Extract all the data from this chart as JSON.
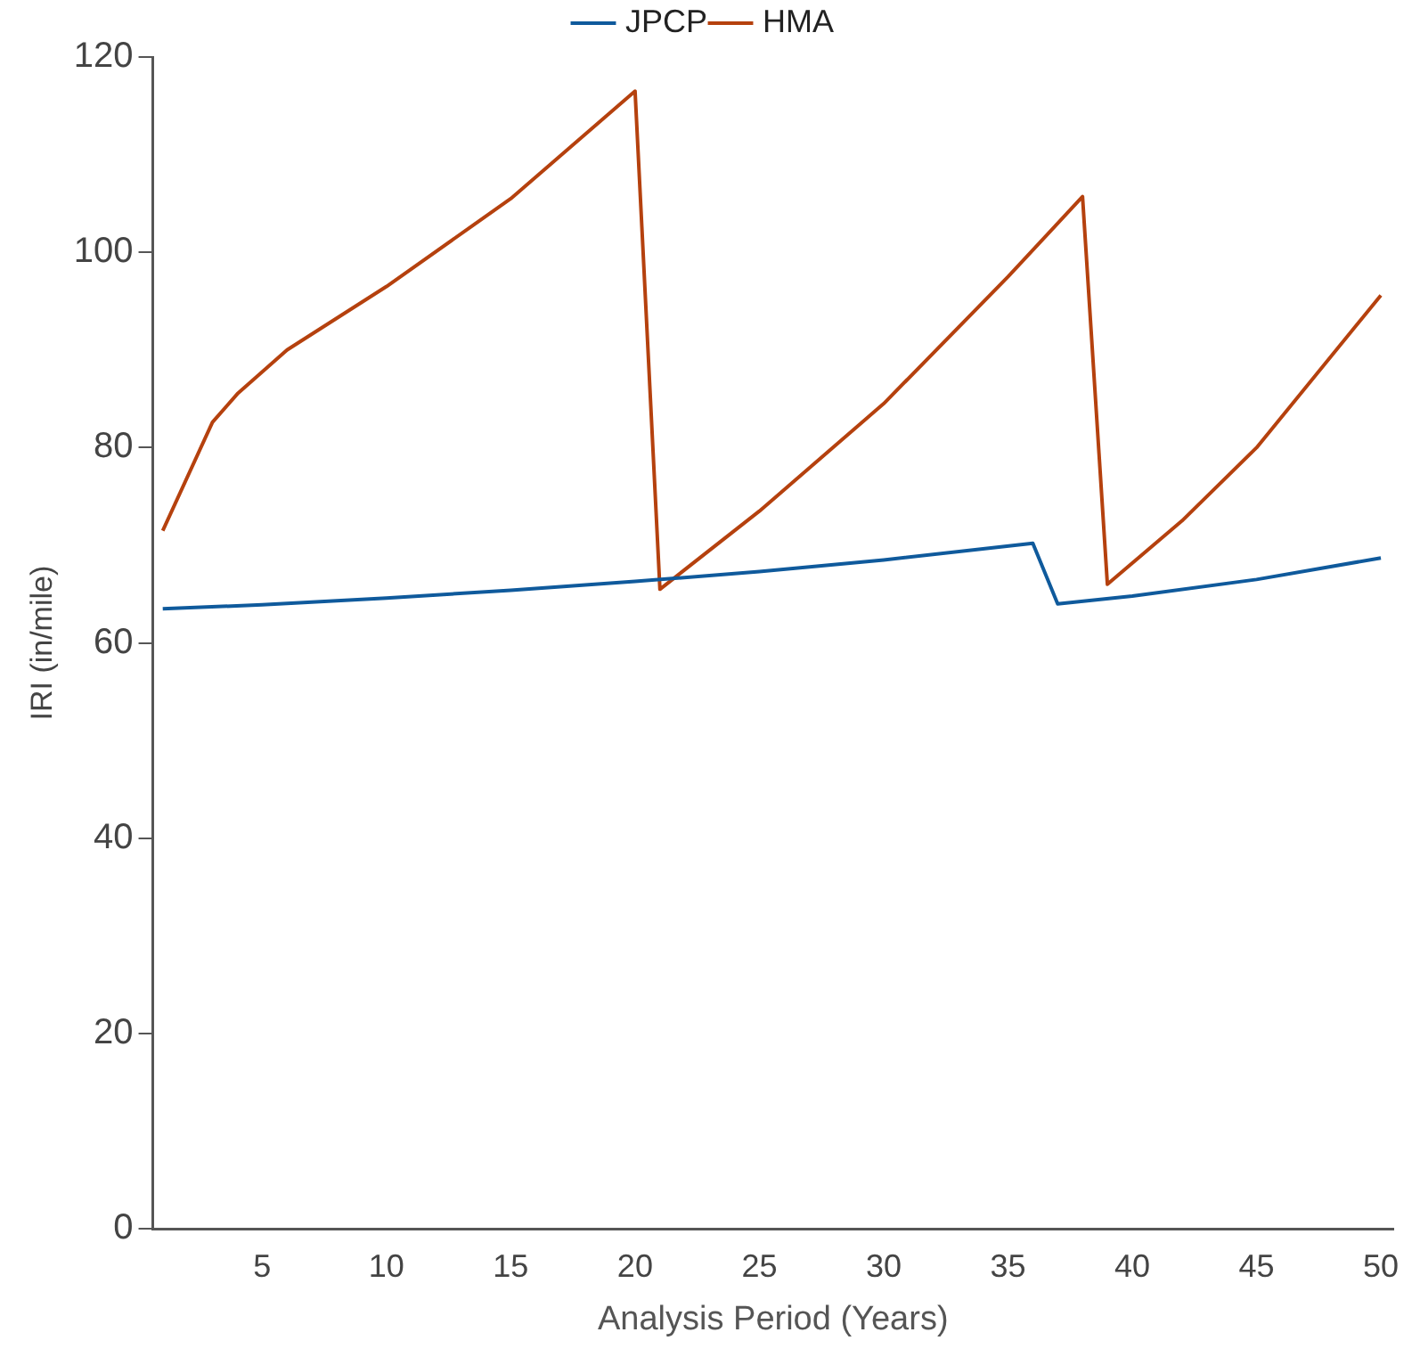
{
  "chart_data": {
    "type": "line",
    "xlabel": "Analysis Period (Years)",
    "ylabel": "IRI (in/mile)",
    "xlim": [
      0.6,
      50.5
    ],
    "xticks": [
      5,
      10,
      15,
      20,
      25,
      30,
      35,
      40,
      45,
      50
    ],
    "ylim": [
      0,
      120
    ],
    "yticks": [
      0,
      20,
      40,
      60,
      80,
      100,
      120
    ],
    "grid": false,
    "legend": "top",
    "marker": "none",
    "line_style": "solid",
    "series": [
      {
        "name": "JPCP",
        "color": "#0f5a9c",
        "x": [
          1,
          5,
          10,
          15,
          20,
          25,
          30,
          36,
          37,
          40,
          45,
          50
        ],
        "values": [
          63.5,
          63.9,
          64.6,
          65.4,
          66.3,
          67.3,
          68.5,
          70.2,
          64.0,
          64.8,
          66.5,
          68.7
        ]
      },
      {
        "name": "HMA",
        "color": "#b5410e",
        "x": [
          1,
          3,
          4,
          6,
          10,
          15,
          20,
          21,
          25,
          30,
          35,
          38,
          39,
          42,
          45,
          50
        ],
        "values": [
          71.5,
          82.6,
          85.5,
          90,
          96.5,
          105.5,
          116.5,
          65.5,
          73.5,
          84.5,
          97.5,
          105.7,
          66,
          72.5,
          80,
          95.6
        ]
      }
    ]
  }
}
